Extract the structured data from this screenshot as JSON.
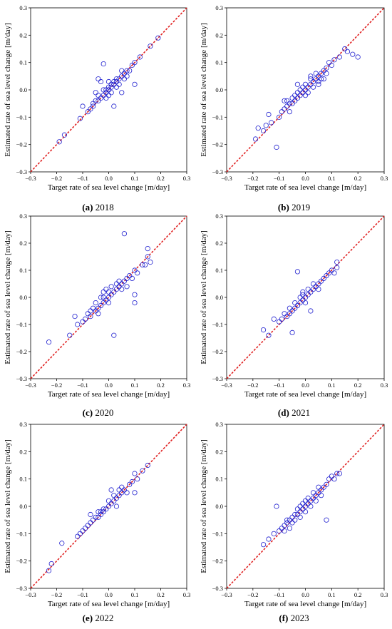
{
  "chart_data": [
    {
      "type": "scatter",
      "caption_letter": "(a)",
      "caption_year": "2018",
      "xlabel": "Target rate of sea level change [m/day]",
      "ylabel": "Estimated rate of sea level change [m/day]",
      "xlim": [
        -0.3,
        0.3
      ],
      "ylim": [
        -0.3,
        0.3
      ],
      "xticks": [
        "−0.3",
        "−0.2",
        "−0.1",
        "0.0",
        "0.1",
        "0.2",
        "0.3"
      ],
      "yticks": [
        "−0.3",
        "−0.2",
        "−0.1",
        "0.0",
        "0.1",
        "0.2",
        "0.3"
      ],
      "reference_line": "y = x",
      "colors": {
        "points": "#1f1fcf",
        "reference": "#e02020"
      },
      "points": [
        [
          -0.19,
          -0.19
        ],
        [
          -0.17,
          -0.165
        ],
        [
          -0.11,
          -0.105
        ],
        [
          -0.08,
          -0.08
        ],
        [
          -0.07,
          -0.07
        ],
        [
          -0.06,
          -0.06
        ],
        [
          -0.1,
          -0.06
        ],
        [
          -0.05,
          -0.04
        ],
        [
          -0.05,
          -0.01
        ],
        [
          -0.04,
          -0.04
        ],
        [
          -0.04,
          -0.02
        ],
        [
          -0.04,
          0.04
        ],
        [
          -0.03,
          -0.03
        ],
        [
          -0.03,
          0.03
        ],
        [
          -0.02,
          -0.02
        ],
        [
          -0.02,
          0.0
        ],
        [
          -0.02,
          0.095
        ],
        [
          -0.01,
          -0.01
        ],
        [
          -0.01,
          -0.03
        ],
        [
          0.0,
          0.0
        ],
        [
          0.0,
          -0.02
        ],
        [
          0.0,
          0.01
        ],
        [
          0.01,
          0.01
        ],
        [
          0.01,
          -0.01
        ],
        [
          0.02,
          0.02
        ],
        [
          0.02,
          0.03
        ],
        [
          0.02,
          -0.06
        ],
        [
          0.03,
          0.03
        ],
        [
          0.03,
          0.01
        ],
        [
          0.04,
          0.04
        ],
        [
          0.04,
          0.02
        ],
        [
          0.05,
          0.05
        ],
        [
          0.05,
          0.07
        ],
        [
          0.06,
          0.06
        ],
        [
          0.06,
          0.04
        ],
        [
          0.07,
          0.07
        ],
        [
          0.07,
          0.05
        ],
        [
          0.08,
          0.07
        ],
        [
          0.09,
          0.09
        ],
        [
          0.1,
          0.1
        ],
        [
          0.1,
          0.02
        ],
        [
          0.16,
          0.16
        ],
        [
          0.19,
          0.19
        ],
        [
          0.12,
          0.12
        ],
        [
          -0.06,
          -0.05
        ],
        [
          0.0,
          0.03
        ],
        [
          0.05,
          -0.01
        ],
        [
          0.01,
          0.02
        ],
        [
          -0.01,
          0.0
        ],
        [
          0.03,
          0.04
        ]
      ]
    },
    {
      "type": "scatter",
      "caption_letter": "(b)",
      "caption_year": "2019",
      "xlabel": "Target rate of sea level change [m/day]",
      "ylabel": "Estimated rate of sea level change [m/day]",
      "xlim": [
        -0.3,
        0.3
      ],
      "ylim": [
        -0.3,
        0.3
      ],
      "xticks": [
        "−0.3",
        "−0.2",
        "−0.1",
        "0.0",
        "0.1",
        "0.2",
        "0.3"
      ],
      "yticks": [
        "−0.3",
        "−0.2",
        "−0.1",
        "0.0",
        "0.1",
        "0.2",
        "0.3"
      ],
      "reference_line": "y = x",
      "colors": {
        "points": "#1f1fcf",
        "reference": "#e02020"
      },
      "points": [
        [
          -0.19,
          -0.18
        ],
        [
          -0.18,
          -0.14
        ],
        [
          -0.16,
          -0.15
        ],
        [
          -0.15,
          -0.13
        ],
        [
          -0.14,
          -0.09
        ],
        [
          -0.13,
          -0.12
        ],
        [
          -0.11,
          -0.21
        ],
        [
          -0.1,
          -0.1
        ],
        [
          -0.09,
          -0.08
        ],
        [
          -0.08,
          -0.07
        ],
        [
          -0.07,
          -0.06
        ],
        [
          -0.07,
          -0.04
        ],
        [
          -0.06,
          -0.05
        ],
        [
          -0.06,
          -0.08
        ],
        [
          -0.05,
          -0.05
        ],
        [
          -0.05,
          -0.03
        ],
        [
          -0.04,
          -0.04
        ],
        [
          -0.04,
          -0.02
        ],
        [
          -0.03,
          -0.03
        ],
        [
          -0.03,
          -0.01
        ],
        [
          -0.02,
          -0.02
        ],
        [
          -0.02,
          0.0
        ],
        [
          -0.01,
          -0.01
        ],
        [
          -0.01,
          0.01
        ],
        [
          0.0,
          0.0
        ],
        [
          0.0,
          -0.02
        ],
        [
          0.0,
          0.02
        ],
        [
          0.01,
          0.01
        ],
        [
          0.01,
          -0.01
        ],
        [
          0.02,
          0.02
        ],
        [
          0.02,
          0.04
        ],
        [
          0.03,
          0.03
        ],
        [
          0.03,
          0.01
        ],
        [
          0.04,
          0.04
        ],
        [
          0.04,
          0.06
        ],
        [
          0.05,
          0.05
        ],
        [
          0.05,
          0.03
        ],
        [
          0.06,
          0.06
        ],
        [
          0.06,
          0.04
        ],
        [
          0.07,
          0.07
        ],
        [
          0.08,
          0.08
        ],
        [
          0.08,
          0.06
        ],
        [
          0.09,
          0.1
        ],
        [
          0.1,
          0.09
        ],
        [
          0.11,
          0.11
        ],
        [
          0.13,
          0.12
        ],
        [
          0.15,
          0.15
        ],
        [
          0.16,
          0.14
        ],
        [
          0.18,
          0.13
        ],
        [
          0.2,
          0.12
        ],
        [
          -0.08,
          -0.04
        ],
        [
          0.02,
          0.05
        ],
        [
          -0.03,
          0.02
        ],
        [
          0.05,
          0.02
        ],
        [
          0.07,
          0.04
        ]
      ]
    },
    {
      "type": "scatter",
      "caption_letter": "(c)",
      "caption_year": "2020",
      "xlabel": "Target rate of sea level change [m/day]",
      "ylabel": "Estimated rate of sea level change [m/day]",
      "xlim": [
        -0.3,
        0.3
      ],
      "ylim": [
        -0.3,
        0.3
      ],
      "xticks": [
        "−0.3",
        "−0.2",
        "−0.1",
        "0.0",
        "0.1",
        "0.2",
        "0.3"
      ],
      "yticks": [
        "−0.3",
        "−0.2",
        "−0.1",
        "0.0",
        "0.1",
        "0.2",
        "0.3"
      ],
      "reference_line": "y = x",
      "colors": {
        "points": "#1f1fcf",
        "reference": "#e02020"
      },
      "points": [
        [
          -0.23,
          -0.165
        ],
        [
          -0.15,
          -0.14
        ],
        [
          -0.13,
          -0.07
        ],
        [
          -0.12,
          -0.1
        ],
        [
          -0.1,
          -0.09
        ],
        [
          -0.09,
          -0.08
        ],
        [
          -0.08,
          -0.06
        ],
        [
          -0.07,
          -0.07
        ],
        [
          -0.06,
          -0.04
        ],
        [
          -0.05,
          -0.05
        ],
        [
          -0.05,
          -0.02
        ],
        [
          -0.04,
          -0.04
        ],
        [
          -0.04,
          -0.06
        ],
        [
          -0.03,
          -0.03
        ],
        [
          -0.03,
          0.0
        ],
        [
          -0.02,
          -0.02
        ],
        [
          -0.02,
          0.02
        ],
        [
          -0.01,
          -0.01
        ],
        [
          -0.01,
          0.03
        ],
        [
          0.0,
          0.0
        ],
        [
          0.0,
          -0.02
        ],
        [
          0.01,
          0.01
        ],
        [
          0.01,
          0.04
        ],
        [
          0.02,
          0.02
        ],
        [
          0.02,
          -0.14
        ],
        [
          0.03,
          0.03
        ],
        [
          0.03,
          0.05
        ],
        [
          0.04,
          0.04
        ],
        [
          0.05,
          0.05
        ],
        [
          0.05,
          0.03
        ],
        [
          0.06,
          0.06
        ],
        [
          0.06,
          0.235
        ],
        [
          0.07,
          0.07
        ],
        [
          0.07,
          0.04
        ],
        [
          0.08,
          0.08
        ],
        [
          0.09,
          0.07
        ],
        [
          0.1,
          0.1
        ],
        [
          0.1,
          0.01
        ],
        [
          0.1,
          -0.02
        ],
        [
          0.11,
          0.09
        ],
        [
          0.13,
          0.12
        ],
        [
          0.14,
          0.12
        ],
        [
          0.15,
          0.15
        ],
        [
          0.15,
          0.18
        ],
        [
          0.16,
          0.13
        ],
        [
          -0.07,
          -0.05
        ],
        [
          0.0,
          0.02
        ],
        [
          0.04,
          0.06
        ],
        [
          -0.02,
          0.0
        ]
      ]
    },
    {
      "type": "scatter",
      "caption_letter": "(d)",
      "caption_year": "2021",
      "xlabel": "Target rate of sea level change [m/day]",
      "ylabel": "Estimated rate of sea level change [m/day]",
      "xlim": [
        -0.3,
        0.3
      ],
      "ylim": [
        -0.3,
        0.3
      ],
      "xticks": [
        "−0.3",
        "−0.2",
        "−0.1",
        "0.0",
        "0.1",
        "0.2",
        "0.3"
      ],
      "yticks": [
        "−0.3",
        "−0.2",
        "−0.1",
        "0.0",
        "0.1",
        "0.2",
        "0.3"
      ],
      "reference_line": "y = x",
      "colors": {
        "points": "#1f1fcf",
        "reference": "#e02020"
      },
      "points": [
        [
          -0.16,
          -0.12
        ],
        [
          -0.14,
          -0.14
        ],
        [
          -0.12,
          -0.08
        ],
        [
          -0.1,
          -0.09
        ],
        [
          -0.09,
          -0.08
        ],
        [
          -0.08,
          -0.06
        ],
        [
          -0.07,
          -0.07
        ],
        [
          -0.06,
          -0.04
        ],
        [
          -0.05,
          -0.05
        ],
        [
          -0.05,
          -0.13
        ],
        [
          -0.04,
          -0.04
        ],
        [
          -0.04,
          -0.02
        ],
        [
          -0.03,
          -0.03
        ],
        [
          -0.03,
          0.095
        ],
        [
          -0.02,
          -0.02
        ],
        [
          -0.02,
          0.0
        ],
        [
          -0.01,
          -0.01
        ],
        [
          -0.01,
          0.01
        ],
        [
          0.0,
          0.0
        ],
        [
          0.0,
          -0.02
        ],
        [
          0.01,
          0.01
        ],
        [
          0.01,
          0.03
        ],
        [
          0.02,
          0.02
        ],
        [
          0.02,
          -0.05
        ],
        [
          0.03,
          0.03
        ],
        [
          0.04,
          0.04
        ],
        [
          0.05,
          0.05
        ],
        [
          0.05,
          0.03
        ],
        [
          0.06,
          0.06
        ],
        [
          0.07,
          0.07
        ],
        [
          0.08,
          0.08
        ],
        [
          0.09,
          0.09
        ],
        [
          0.1,
          0.1
        ],
        [
          0.11,
          0.09
        ],
        [
          0.12,
          0.13
        ],
        [
          0.12,
          0.11
        ],
        [
          -0.06,
          -0.06
        ],
        [
          0.03,
          0.05
        ],
        [
          -0.01,
          0.02
        ]
      ]
    },
    {
      "type": "scatter",
      "caption_letter": "(e)",
      "caption_year": "2022",
      "xlabel": "Target rate of sea level change [m/day]",
      "ylabel": "Estimated rate of sea level change [m/day]",
      "xlim": [
        -0.3,
        0.3
      ],
      "ylim": [
        -0.3,
        0.3
      ],
      "xticks": [
        "−0.3",
        "−0.2",
        "−0.1",
        "0.0",
        "0.1",
        "0.2",
        "0.3"
      ],
      "yticks": [
        "−0.3",
        "−0.2",
        "−0.1",
        "0.0",
        "0.1",
        "0.2",
        "0.3"
      ],
      "reference_line": "y = x",
      "colors": {
        "points": "#1f1fcf",
        "reference": "#e02020"
      },
      "points": [
        [
          -0.23,
          -0.235
        ],
        [
          -0.22,
          -0.21
        ],
        [
          -0.18,
          -0.135
        ],
        [
          -0.12,
          -0.11
        ],
        [
          -0.11,
          -0.1
        ],
        [
          -0.1,
          -0.09
        ],
        [
          -0.09,
          -0.08
        ],
        [
          -0.08,
          -0.07
        ],
        [
          -0.07,
          -0.06
        ],
        [
          -0.07,
          -0.03
        ],
        [
          -0.06,
          -0.05
        ],
        [
          -0.05,
          -0.04
        ],
        [
          -0.04,
          -0.04
        ],
        [
          -0.04,
          -0.02
        ],
        [
          -0.03,
          -0.03
        ],
        [
          -0.02,
          -0.02
        ],
        [
          -0.02,
          -0.01
        ],
        [
          -0.01,
          -0.01
        ],
        [
          0.0,
          0.0
        ],
        [
          0.0,
          0.02
        ],
        [
          0.01,
          0.01
        ],
        [
          0.01,
          0.06
        ],
        [
          0.02,
          0.02
        ],
        [
          0.02,
          0.04
        ],
        [
          0.03,
          0.03
        ],
        [
          0.04,
          0.04
        ],
        [
          0.04,
          0.06
        ],
        [
          0.05,
          0.05
        ],
        [
          0.05,
          0.07
        ],
        [
          0.06,
          0.06
        ],
        [
          0.07,
          0.05
        ],
        [
          0.08,
          0.08
        ],
        [
          0.09,
          0.09
        ],
        [
          0.1,
          0.12
        ],
        [
          0.1,
          0.05
        ],
        [
          0.11,
          0.1
        ],
        [
          0.13,
          0.13
        ],
        [
          0.15,
          0.15
        ],
        [
          0.03,
          0.0
        ],
        [
          -0.03,
          -0.02
        ]
      ]
    },
    {
      "type": "scatter",
      "caption_letter": "(f)",
      "caption_year": "2023",
      "xlabel": "Target rate of sea level change [m/day]",
      "ylabel": "Estimated rate of sea level change [m/day]",
      "xlim": [
        -0.3,
        0.3
      ],
      "ylim": [
        -0.3,
        0.3
      ],
      "xticks": [
        "−0.3",
        "−0.2",
        "−0.1",
        "0.0",
        "0.1",
        "0.2",
        "0.3"
      ],
      "yticks": [
        "−0.3",
        "−0.2",
        "−0.1",
        "0.0",
        "0.1",
        "0.2",
        "0.3"
      ],
      "reference_line": "y = x",
      "colors": {
        "points": "#1f1fcf",
        "reference": "#e02020"
      },
      "points": [
        [
          -0.16,
          -0.14
        ],
        [
          -0.14,
          -0.12
        ],
        [
          -0.12,
          -0.1
        ],
        [
          -0.11,
          0.0
        ],
        [
          -0.1,
          -0.09
        ],
        [
          -0.09,
          -0.08
        ],
        [
          -0.08,
          -0.07
        ],
        [
          -0.08,
          -0.09
        ],
        [
          -0.07,
          -0.06
        ],
        [
          -0.06,
          -0.05
        ],
        [
          -0.06,
          -0.08
        ],
        [
          -0.05,
          -0.04
        ],
        [
          -0.05,
          -0.06
        ],
        [
          -0.04,
          -0.03
        ],
        [
          -0.04,
          -0.05
        ],
        [
          -0.03,
          -0.03
        ],
        [
          -0.03,
          -0.01
        ],
        [
          -0.02,
          -0.02
        ],
        [
          -0.02,
          0.0
        ],
        [
          -0.01,
          -0.01
        ],
        [
          -0.01,
          0.01
        ],
        [
          0.0,
          0.0
        ],
        [
          0.0,
          -0.02
        ],
        [
          0.01,
          0.01
        ],
        [
          0.01,
          0.03
        ],
        [
          0.02,
          0.02
        ],
        [
          0.02,
          0.0
        ],
        [
          0.03,
          0.03
        ],
        [
          0.03,
          0.05
        ],
        [
          0.04,
          0.04
        ],
        [
          0.04,
          0.02
        ],
        [
          0.05,
          0.05
        ],
        [
          0.06,
          0.06
        ],
        [
          0.06,
          0.04
        ],
        [
          0.07,
          0.07
        ],
        [
          0.08,
          0.08
        ],
        [
          0.08,
          -0.05
        ],
        [
          0.09,
          0.1
        ],
        [
          0.1,
          0.11
        ],
        [
          0.11,
          0.1
        ],
        [
          0.12,
          0.12
        ],
        [
          0.13,
          0.12
        ],
        [
          -0.07,
          -0.05
        ],
        [
          0.0,
          0.02
        ],
        [
          0.05,
          0.07
        ],
        [
          -0.02,
          -0.04
        ]
      ]
    }
  ]
}
